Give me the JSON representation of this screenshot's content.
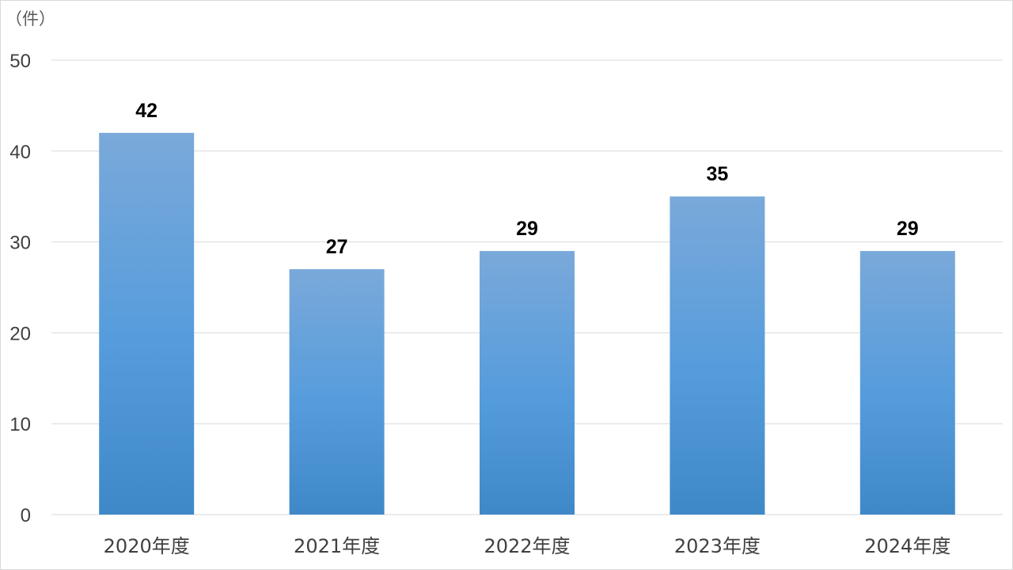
{
  "chart_data": {
    "type": "bar",
    "unit_label": "（件）",
    "categories": [
      "2020年度",
      "2021年度",
      "2022年度",
      "2023年度",
      "2024年度"
    ],
    "values": [
      42,
      27,
      29,
      35,
      29
    ],
    "ylim": [
      0,
      50
    ],
    "yticks": [
      0,
      10,
      20,
      30,
      40,
      50
    ],
    "grid": true,
    "data_labels": true,
    "bar_color_top": "#7aa9da",
    "bar_color_bottom": "#3f88c8"
  }
}
